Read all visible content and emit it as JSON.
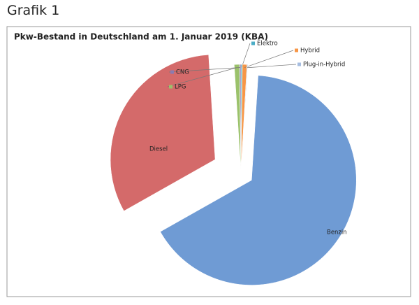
{
  "heading": "Grafik 1",
  "chart_data": {
    "type": "pie",
    "title": "Pkw-Bestand in Deutschland am 1. Januar 2019 (KBA)",
    "categories": [
      "Elektro",
      "Hybrid",
      "Plug-in-Hybrid",
      "Benzin",
      "Diesel",
      "LPG",
      "CNG"
    ],
    "values": [
      0.2,
      0.7,
      0.1,
      65.9,
      32.2,
      0.8,
      0.2
    ],
    "colors": [
      "#4bacc6",
      "#f79646",
      "#a6bde0",
      "#6f9bd4",
      "#d46a6a",
      "#9bc26b",
      "#8b7bb0"
    ]
  }
}
